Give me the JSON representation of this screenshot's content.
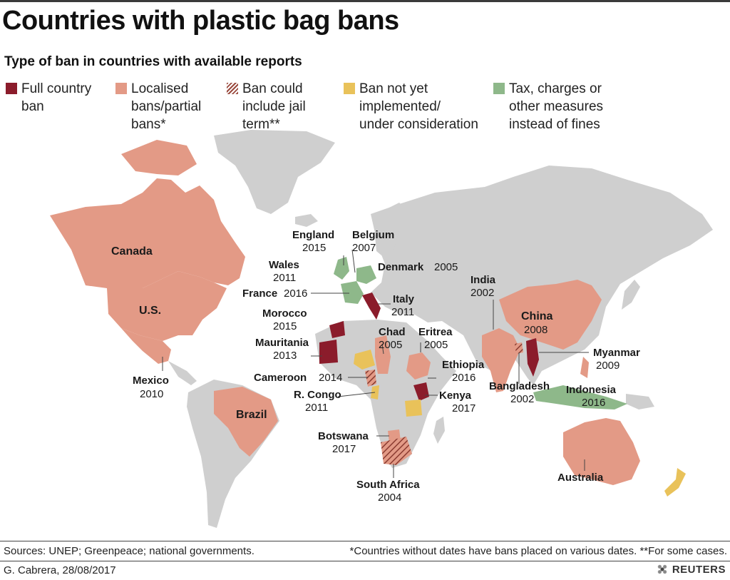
{
  "title": "Countries with plastic bag bans",
  "subtitle": "Type of ban in countries with available reports",
  "colors": {
    "full_ban": "#8b1c2b",
    "localised": "#e39a86",
    "jail_hatch": "#9a4a3e",
    "not_implemented": "#e9c25a",
    "tax": "#8eb88a",
    "land": "#cfcfcf",
    "background": "#ffffff"
  },
  "legend": [
    {
      "key": "full",
      "label": "Full country\nban",
      "color": "#8b1c2b",
      "pattern": "solid"
    },
    {
      "key": "localised",
      "label": "Localised\nbans/partial\nbans*",
      "color": "#e39a86",
      "pattern": "solid"
    },
    {
      "key": "jail",
      "label": "Ban could\ninclude jail\nterm**",
      "color": "#9a4a3e",
      "pattern": "hatch"
    },
    {
      "key": "pending",
      "label": "Ban not yet\nimplemented/\nunder consideration",
      "color": "#e9c25a",
      "pattern": "solid"
    },
    {
      "key": "tax",
      "label": "Tax, charges or\nother measures\ninstead of fines",
      "color": "#8eb88a",
      "pattern": "solid"
    }
  ],
  "countries": [
    {
      "name": "Canada",
      "year": "",
      "category": "localised"
    },
    {
      "name": "U.S.",
      "year": "",
      "category": "localised"
    },
    {
      "name": "Mexico",
      "year": "2010",
      "category": "localised"
    },
    {
      "name": "Brazil",
      "year": "",
      "category": "localised"
    },
    {
      "name": "England",
      "year": "2015",
      "category": "tax"
    },
    {
      "name": "Wales",
      "year": "2011",
      "category": "tax"
    },
    {
      "name": "Belgium",
      "year": "2007",
      "category": "tax"
    },
    {
      "name": "Denmark",
      "year": "2005",
      "category": "tax"
    },
    {
      "name": "France",
      "year": "2016",
      "category": "tax"
    },
    {
      "name": "Italy",
      "year": "2011",
      "category": "full"
    },
    {
      "name": "Morocco",
      "year": "2015",
      "category": "full"
    },
    {
      "name": "Mauritania",
      "year": "2013",
      "category": "full"
    },
    {
      "name": "Chad",
      "year": "2005",
      "category": "localised"
    },
    {
      "name": "Eritrea",
      "year": "2005",
      "category": "localised"
    },
    {
      "name": "Ethiopia",
      "year": "2016",
      "category": "localised"
    },
    {
      "name": "Cameroon",
      "year": "2014",
      "category": "jail"
    },
    {
      "name": "R. Congo",
      "year": "2011",
      "category": "pending"
    },
    {
      "name": "Kenya",
      "year": "2017",
      "category": "full"
    },
    {
      "name": "Botswana",
      "year": "2017",
      "category": "localised"
    },
    {
      "name": "South Africa",
      "year": "2004",
      "category": "jail"
    },
    {
      "name": "India",
      "year": "2002",
      "category": "localised"
    },
    {
      "name": "China",
      "year": "2008",
      "category": "localised"
    },
    {
      "name": "Bangladesh",
      "year": "2002",
      "category": "jail"
    },
    {
      "name": "Myanmar",
      "year": "2009",
      "category": "full"
    },
    {
      "name": "Indonesia",
      "year": "2016",
      "category": "tax"
    },
    {
      "name": "Australia",
      "year": "",
      "category": "localised"
    }
  ],
  "footer": {
    "sources": "Sources: UNEP; Greenpeace; national governments.",
    "notes": "*Countries without dates have bans placed on various dates. **For some cases.",
    "credit": "G. Cabrera,  28/08/2017",
    "brand": "REUTERS"
  }
}
